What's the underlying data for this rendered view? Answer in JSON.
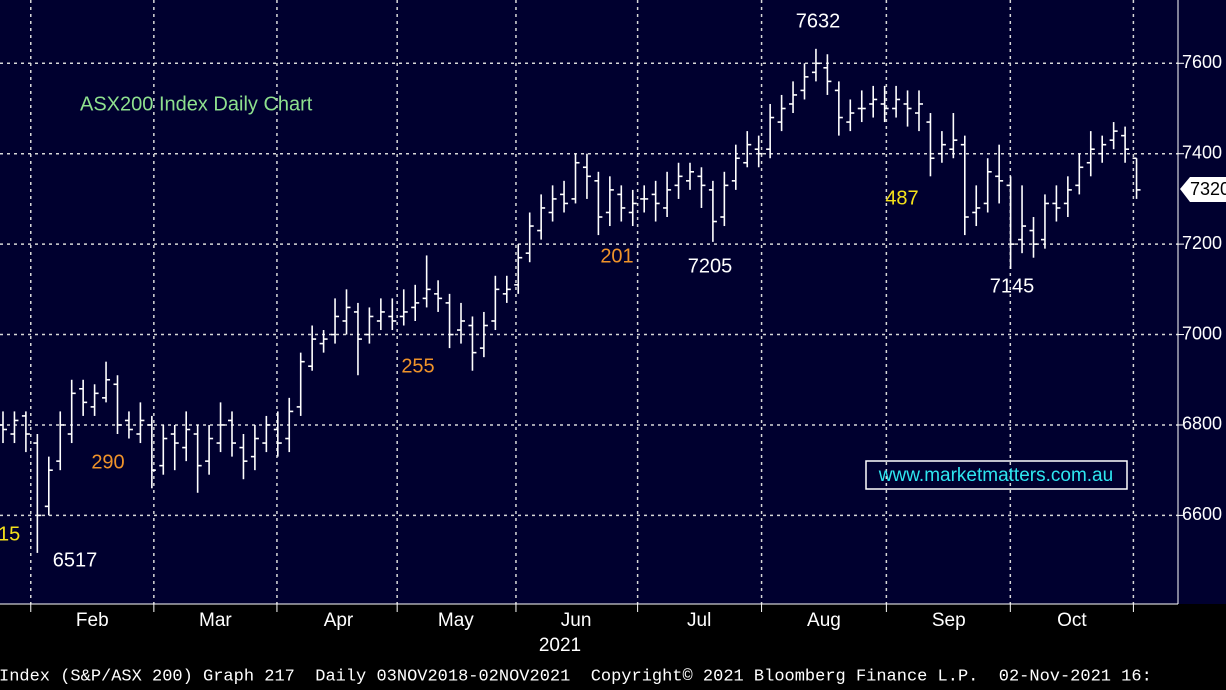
{
  "chart_data": {
    "type": "ohlc",
    "title": "ASX200 Index Daily Chart",
    "source": "www.marketmatters.com.au",
    "footer": "Index (S&P/ASX 200) Graph 217  Daily 03NOV2018-02NOV2021  Copyright© 2021 Bloomberg Finance L.P.  02-Nov-2021 16:",
    "xlabel": "2021",
    "color": "#ffffff",
    "grid": true,
    "open": [
      6800,
      6780,
      6820,
      6760,
      6620,
      6720,
      6780,
      6880,
      6840,
      6860,
      6890,
      6810,
      6780,
      6800,
      6710,
      6780,
      6750,
      6780,
      6720,
      6760,
      6810,
      6750,
      6730,
      6760,
      6790,
      6770,
      6840,
      6930,
      6980,
      7000,
      7030,
      7050,
      7000,
      7030,
      7040,
      7040,
      7060,
      7080,
      7090,
      7070,
      7010,
      7020,
      6970,
      7030,
      7090,
      7110,
      7180,
      7230,
      7270,
      7310,
      7300,
      7370,
      7340,
      7270,
      7310,
      7270,
      7300,
      7310,
      7280,
      7330,
      7340,
      7350,
      7320,
      7260,
      7340,
      7380,
      7410,
      7410,
      7470,
      7510,
      7540,
      7580,
      7590,
      7540,
      7470,
      7500,
      7510,
      7510,
      7500,
      7510,
      7490,
      7470,
      7400,
      7410,
      7420,
      7270,
      7290,
      7350,
      7330,
      7210,
      7230,
      7210,
      7290,
      7290,
      7330,
      7380,
      7400,
      7430,
      7440,
      7390
    ],
    "high": [
      6830,
      6830,
      6830,
      6780,
      6730,
      6830,
      6900,
      6900,
      6890,
      6940,
      6910,
      6830,
      6850,
      6820,
      6800,
      6800,
      6830,
      6800,
      6800,
      6850,
      6830,
      6780,
      6800,
      6820,
      6830,
      6860,
      6960,
      7020,
      7010,
      7080,
      7100,
      7070,
      7060,
      7080,
      7080,
      7100,
      7110,
      7175,
      7120,
      7090,
      7070,
      7040,
      7050,
      7130,
      7130,
      7200,
      7270,
      7310,
      7330,
      7340,
      7400,
      7400,
      7360,
      7350,
      7330,
      7320,
      7330,
      7340,
      7360,
      7380,
      7380,
      7370,
      7340,
      7360,
      7420,
      7450,
      7440,
      7510,
      7530,
      7560,
      7600,
      7632,
      7620,
      7560,
      7520,
      7540,
      7550,
      7550,
      7550,
      7540,
      7540,
      7490,
      7450,
      7490,
      7440,
      7330,
      7390,
      7420,
      7350,
      7330,
      7260,
      7310,
      7330,
      7350,
      7400,
      7450,
      7440,
      7470,
      7460,
      7390
    ],
    "low": [
      6760,
      6760,
      6740,
      6517,
      6600,
      6700,
      6760,
      6820,
      6820,
      6850,
      6780,
      6770,
      6760,
      6660,
      6690,
      6700,
      6720,
      6650,
      6690,
      6740,
      6730,
      6680,
      6700,
      6740,
      6730,
      6740,
      6820,
      6920,
      6960,
      6980,
      7000,
      6910,
      6980,
      7010,
      7010,
      7020,
      7030,
      7060,
      7050,
      6970,
      6980,
      6920,
      6950,
      7010,
      7070,
      7090,
      7160,
      7210,
      7250,
      7270,
      7290,
      7300,
      7220,
      7240,
      7250,
      7240,
      7270,
      7250,
      7260,
      7300,
      7320,
      7280,
      7205,
      7240,
      7320,
      7370,
      7370,
      7390,
      7450,
      7490,
      7520,
      7560,
      7530,
      7440,
      7450,
      7470,
      7480,
      7470,
      7480,
      7460,
      7450,
      7350,
      7380,
      7390,
      7220,
      7240,
      7270,
      7290,
      7145,
      7180,
      7170,
      7190,
      7250,
      7260,
      7310,
      7350,
      7380,
      7410,
      7380,
      7300
    ],
    "close": [
      6790,
      6810,
      6780,
      6600,
      6700,
      6800,
      6870,
      6850,
      6870,
      6900,
      6800,
      6790,
      6810,
      6700,
      6770,
      6760,
      6790,
      6710,
      6770,
      6800,
      6760,
      6720,
      6770,
      6800,
      6760,
      6830,
      6940,
      6990,
      6990,
      7040,
      7060,
      6990,
      7040,
      7050,
      7030,
      7050,
      7070,
      7100,
      7080,
      7000,
      7030,
      6960,
      7020,
      7100,
      7100,
      7170,
      7240,
      7280,
      7300,
      7290,
      7380,
      7350,
      7260,
      7320,
      7280,
      7290,
      7300,
      7290,
      7320,
      7350,
      7360,
      7330,
      7250,
      7330,
      7390,
      7420,
      7400,
      7480,
      7500,
      7530,
      7570,
      7600,
      7560,
      7480,
      7490,
      7500,
      7520,
      7500,
      7520,
      7500,
      7510,
      7390,
      7420,
      7430,
      7260,
      7280,
      7360,
      7340,
      7200,
      7240,
      7200,
      7290,
      7280,
      7320,
      7370,
      7410,
      7420,
      7450,
      7410,
      7320
    ],
    "xticks": [
      {
        "value": 7.8,
        "label": "Feb"
      },
      {
        "value": 18.55,
        "label": "Mar"
      },
      {
        "value": 29.3,
        "label": "Apr"
      },
      {
        "value": 39.55,
        "label": "May"
      },
      {
        "value": 50.05,
        "label": "Jun"
      },
      {
        "value": 60.8,
        "label": "Jul"
      },
      {
        "value": 71.7,
        "label": "Aug"
      },
      {
        "value": 82.6,
        "label": "Sep"
      },
      {
        "value": 93.35,
        "label": "Oct"
      }
    ],
    "ylim": [
      6404,
      7740
    ],
    "yticks": [
      6600,
      6800,
      7000,
      7200,
      7400,
      7600
    ],
    "annotations": [
      {
        "text": "7632",
        "color": "#ffffff"
      },
      {
        "text": "7205",
        "color": "#ffffff"
      },
      {
        "text": "7145",
        "color": "#ffffff"
      },
      {
        "text": "6517",
        "color": "#ffffff"
      },
      {
        "text": "290",
        "color": "#f0932a"
      },
      {
        "text": "255",
        "color": "#f0932a"
      },
      {
        "text": "201",
        "color": "#f0932a"
      },
      {
        "text": "487",
        "color": "#f5e11a"
      },
      {
        "text": "15",
        "color": "#f5e11a"
      }
    ]
  }
}
